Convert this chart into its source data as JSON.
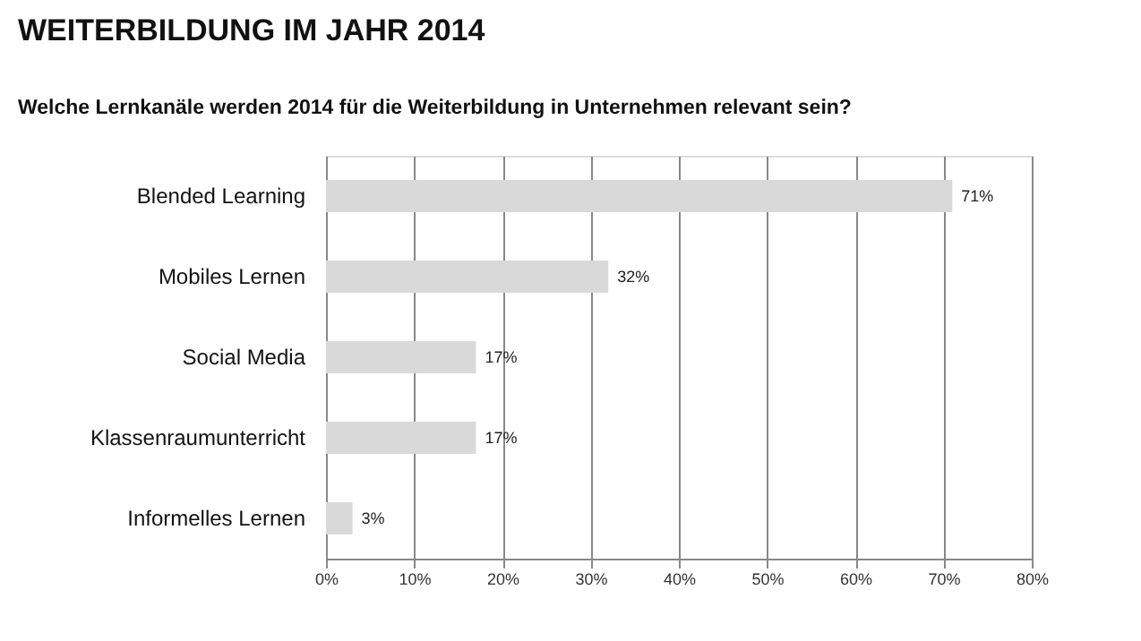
{
  "chart_data": {
    "type": "bar",
    "orientation": "horizontal",
    "title": "WEITERBILDUNG IM JAHR 2014",
    "subtitle": "Welche Lernkanäle werden 2014 für die Weiterbildung in Unternehmen relevant sein?",
    "categories": [
      "Blended Learning",
      "Mobiles Lernen",
      "Social Media",
      "Klassenraumunterricht",
      "Informelles Lernen"
    ],
    "values": [
      71,
      32,
      17,
      17,
      3
    ],
    "value_labels": [
      "71%",
      "32%",
      "17%",
      "17%",
      "3%"
    ],
    "color": "#d9d9d9",
    "xlim": [
      0,
      80
    ],
    "xticks": [
      {
        "value": 0,
        "label": "0%"
      },
      {
        "value": 10,
        "label": "10%"
      },
      {
        "value": 20,
        "label": "20%"
      },
      {
        "value": 30,
        "label": "30%"
      },
      {
        "value": 40,
        "label": "40%"
      },
      {
        "value": 50,
        "label": "50%"
      },
      {
        "value": 60,
        "label": "60%"
      },
      {
        "value": 70,
        "label": "70%"
      },
      {
        "value": 80,
        "label": "80%"
      }
    ],
    "grid": "x"
  }
}
